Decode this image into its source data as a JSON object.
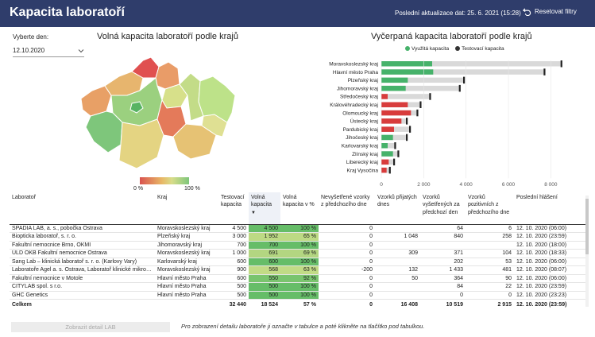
{
  "header": {
    "title": "Kapacita laboratoří",
    "updated": "Poslední aktualizace dat: 25. 6. 2021 (15:28)",
    "reset_label": "Resetovat filtry"
  },
  "filter": {
    "label": "Vyberte den:",
    "selected_date": "12.10.2020"
  },
  "map": {
    "title": "Volná kapacita laboratoří podle krajů",
    "legend_min": "0 %",
    "legend_max": "100 %"
  },
  "bar_chart": {
    "title": "Vyčerpaná kapacita laboratoří podle krajů",
    "legend_used": "Využitá kapacita",
    "legend_tested": "Testovací kapacita"
  },
  "chart_data": {
    "type": "bar",
    "title": "Vyčerpaná kapacita laboratoří podle krajů",
    "categories": [
      "Moravskoslezský kraj",
      "Hlavní město Praha",
      "Plzeňský kraj",
      "Jihomoravský kraj",
      "Středočeský kraj",
      "Královéhradecký kraj",
      "Olomoucký kraj",
      "Ústecký kraj",
      "Pardubický kraj",
      "Jihočeský kraj",
      "Karlovarský kraj",
      "Zlínský kraj",
      "Liberecký kraj",
      "Kraj Vysočina"
    ],
    "series": [
      {
        "name": "Využitá kapacita",
        "values": [
          2400,
          2450,
          1250,
          1150,
          300,
          1250,
          1400,
          950,
          600,
          550,
          300,
          550,
          350,
          250
        ]
      },
      {
        "name": "Testovací kapacita",
        "values": [
          8500,
          7700,
          3900,
          3700,
          2300,
          1850,
          1700,
          1200,
          1350,
          1200,
          650,
          800,
          600,
          400
        ]
      }
    ],
    "bar_colors": [
      "#46b26a",
      "#46b26a",
      "#46b26a",
      "#46b26a",
      "#d83c3c",
      "#d83c3c",
      "#d83c3c",
      "#d83c3c",
      "#d83c3c",
      "#46b26a",
      "#46b26a",
      "#46b26a",
      "#d83c3c",
      "#d83c3c"
    ],
    "x_ticks": [
      "0",
      "2 000",
      "4 000",
      "6 000",
      "8 000"
    ],
    "xlim": [
      0,
      9000
    ]
  },
  "table": {
    "columns": [
      "Laboratoř",
      "Kraj",
      "Testovací kapacita",
      "Volná kapacita",
      "Volná kapacita v %",
      "Nevyšetřené vzorky z předchozího dne",
      "Vzorků přijatých dnes",
      "Vzorků vyšetřených za předchozí den",
      "Vzorků pozitivních z předchozího dne",
      "Poslední hlášení"
    ],
    "rows": [
      [
        "SPADIA LAB, a. s., pobočka Ostrava",
        "Moravskoslezský kraj",
        "4 500",
        "4 500",
        "100 %",
        "0",
        "",
        "64",
        "6",
        "12. 10. 2020 (06:00)"
      ],
      [
        "Biopticka laboratoř, s. r. o.",
        "Plzeňský kraj",
        "3 000",
        "1 952",
        "65 %",
        "0",
        "1 048",
        "840",
        "258",
        "12. 10. 2020 (23:59)"
      ],
      [
        "Fakultní nemocnice Brno, OKMI",
        "Jihomoravský kraj",
        "700",
        "700",
        "100 %",
        "0",
        "",
        "",
        "",
        "12. 10. 2020 (18:00)"
      ],
      [
        "ÚLD OKB Fakultní nemocnice Ostrava",
        "Moravskoslezský kraj",
        "1 000",
        "691",
        "69 %",
        "0",
        "309",
        "371",
        "104",
        "12. 10. 2020 (18:33)"
      ],
      [
        "Sang Lab – klinická laboratoř s. r. o. (Karlovy Vary)",
        "Karlovarský kraj",
        "600",
        "600",
        "100 %",
        "0",
        "",
        "202",
        "53",
        "12. 10. 2020 (06:00)"
      ],
      [
        "Laboratoře Agel a. s. Ostrava, Laboratoř klinické mikro…",
        "Moravskoslezský kraj",
        "900",
        "568",
        "63 %",
        "-200",
        "132",
        "1 433",
        "481",
        "12. 10. 2020 (08:07)"
      ],
      [
        "Fakultní nemocnice v Motole",
        "Hlavní město Praha",
        "600",
        "550",
        "92 %",
        "0",
        "50",
        "364",
        "90",
        "12. 10. 2020 (06:00)"
      ],
      [
        "CITYLAB spol. s r.o.",
        "Hlavní město Praha",
        "500",
        "500",
        "100 %",
        "0",
        "",
        "84",
        "22",
        "12. 10. 2020 (23:59)"
      ],
      [
        "GHC Genetics",
        "Hlavní město Praha",
        "500",
        "500",
        "100 %",
        "0",
        "",
        "0",
        "0",
        "12. 10. 2020 (23:23)"
      ]
    ],
    "row_pct": [
      100,
      65,
      100,
      69,
      100,
      63,
      92,
      100,
      100
    ],
    "total": [
      "Celkem",
      "",
      "32 440",
      "18 524",
      "57 %",
      "0",
      "16 408",
      "10 519",
      "2 915",
      "12. 10. 2020 (23:59)"
    ]
  },
  "footer": {
    "detail_button": "Zobrazit detail LAB",
    "hint": "Pro zobrazení detailu laboratoře ji označte v tabulce a poté klikněte na tlačítko pod tabulkou."
  },
  "colors": {
    "header_bg": "#2f3d6b",
    "green": "#46b26a",
    "red": "#d83c3c",
    "gray_bar": "#d9d9d9"
  }
}
